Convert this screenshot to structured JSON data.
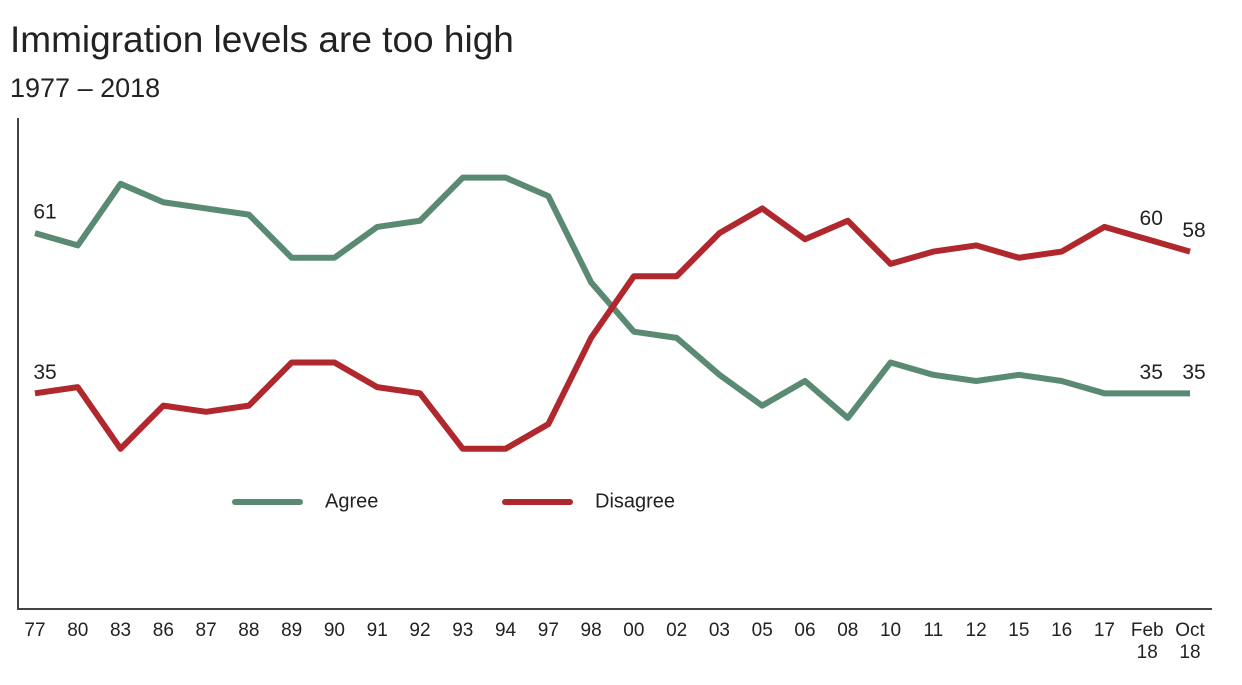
{
  "chart_data": {
    "type": "line",
    "title": "Immigration levels are too high",
    "subtitle": "1977 – 2018",
    "categories": [
      "77",
      "80",
      "83",
      "86",
      "87",
      "88",
      "89",
      "90",
      "91",
      "92",
      "93",
      "94",
      "97",
      "98",
      "00",
      "02",
      "03",
      "05",
      "06",
      "08",
      "10",
      "11",
      "12",
      "15",
      "16",
      "17",
      "Feb 18",
      "Oct 18"
    ],
    "series": [
      {
        "name": "Agree",
        "color": "#5b8a73",
        "values": [
          61,
          59,
          69,
          66,
          65,
          64,
          57,
          57,
          62,
          63,
          70,
          70,
          67,
          53,
          45,
          44,
          38,
          33,
          37,
          31,
          40,
          38,
          37,
          38,
          37,
          35,
          35,
          35
        ]
      },
      {
        "name": "Disagree",
        "color": "#b0282d",
        "values": [
          35,
          36,
          26,
          33,
          32,
          33,
          40,
          40,
          36,
          35,
          26,
          26,
          30,
          44,
          54,
          54,
          61,
          65,
          60,
          63,
          56,
          58,
          59,
          57,
          58,
          62,
          60,
          58
        ]
      }
    ],
    "label_indices": [
      0,
      26,
      27
    ],
    "ylim": [
      0,
      80
    ],
    "legend": "center"
  }
}
